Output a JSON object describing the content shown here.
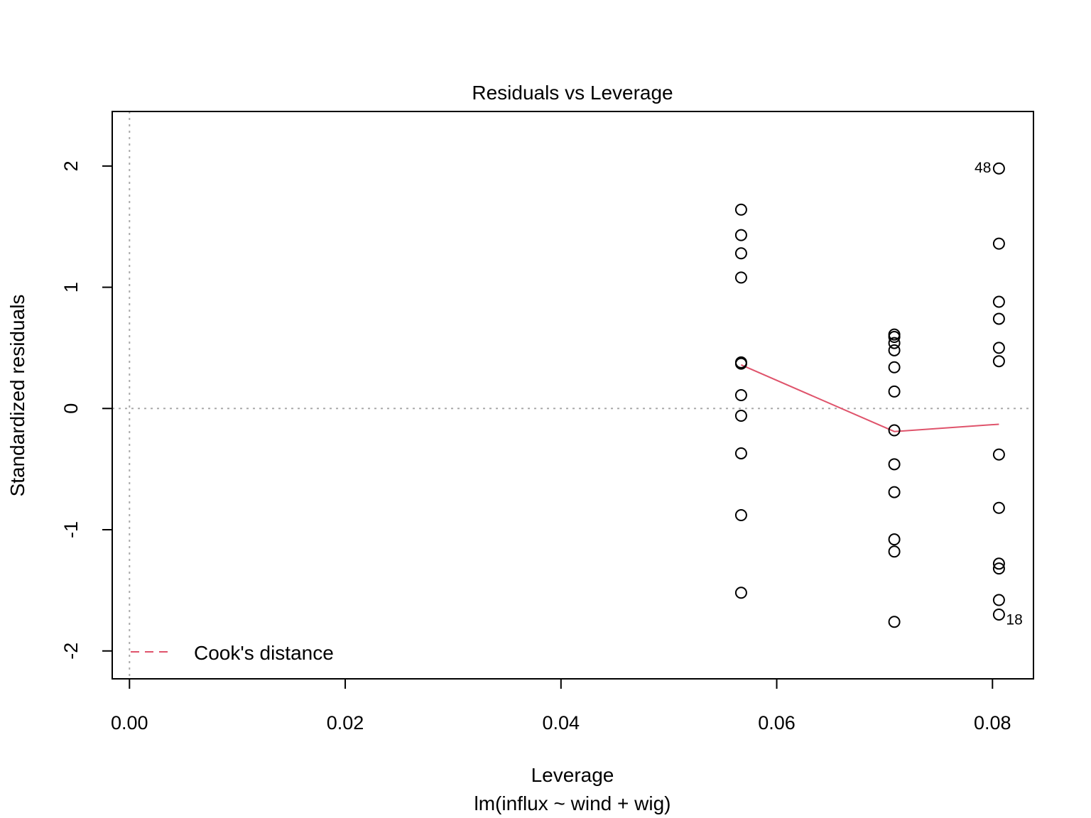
{
  "chart_data": {
    "type": "scatter",
    "title": "Residuals vs Leverage",
    "xlabel": "Leverage",
    "subtitle": "lm(influx ~ wind + wig)",
    "ylabel": "Standardized residuals",
    "xlim": [
      -0.0016,
      0.0838
    ],
    "ylim": [
      -2.23,
      2.45
    ],
    "x_ticks": [
      0.0,
      0.02,
      0.04,
      0.06,
      0.08
    ],
    "x_tick_labels": [
      "0.00",
      "0.02",
      "0.04",
      "0.06",
      "0.08"
    ],
    "y_ticks": [
      -2,
      -1,
      0,
      1,
      2
    ],
    "y_tick_labels": [
      "-2",
      "-1",
      "0",
      "1",
      "2"
    ],
    "reference_lines": {
      "x": 0,
      "y": 0,
      "style": "dotted",
      "color": "#aaaaaa"
    },
    "points": [
      {
        "x": 0.0567,
        "y": 1.64
      },
      {
        "x": 0.0567,
        "y": 1.43
      },
      {
        "x": 0.0567,
        "y": 1.28
      },
      {
        "x": 0.0567,
        "y": 1.08
      },
      {
        "x": 0.0567,
        "y": 0.38
      },
      {
        "x": 0.0567,
        "y": 0.37
      },
      {
        "x": 0.0567,
        "y": 0.11
      },
      {
        "x": 0.0567,
        "y": -0.06
      },
      {
        "x": 0.0567,
        "y": -0.37
      },
      {
        "x": 0.0567,
        "y": -0.88
      },
      {
        "x": 0.0567,
        "y": -1.52
      },
      {
        "x": 0.0709,
        "y": 0.61
      },
      {
        "x": 0.0709,
        "y": 0.59
      },
      {
        "x": 0.0709,
        "y": 0.54
      },
      {
        "x": 0.0709,
        "y": 0.48
      },
      {
        "x": 0.0709,
        "y": 0.34
      },
      {
        "x": 0.0709,
        "y": 0.14
      },
      {
        "x": 0.0709,
        "y": -0.18
      },
      {
        "x": 0.0709,
        "y": -0.46
      },
      {
        "x": 0.0709,
        "y": -0.69
      },
      {
        "x": 0.0709,
        "y": -1.08
      },
      {
        "x": 0.0709,
        "y": -1.18
      },
      {
        "x": 0.0709,
        "y": -1.76
      },
      {
        "x": 0.0806,
        "y": 1.98
      },
      {
        "x": 0.0806,
        "y": 1.36
      },
      {
        "x": 0.0806,
        "y": 0.88
      },
      {
        "x": 0.0806,
        "y": 0.74
      },
      {
        "x": 0.0806,
        "y": 0.5
      },
      {
        "x": 0.0806,
        "y": 0.39
      },
      {
        "x": 0.0806,
        "y": -0.38
      },
      {
        "x": 0.0806,
        "y": -0.82
      },
      {
        "x": 0.0806,
        "y": -1.28
      },
      {
        "x": 0.0806,
        "y": -1.32
      },
      {
        "x": 0.0806,
        "y": -1.58
      },
      {
        "x": 0.0806,
        "y": -1.7
      }
    ],
    "smooth_line": {
      "color": "#df536b",
      "points": [
        {
          "x": 0.0567,
          "y": 0.36
        },
        {
          "x": 0.0709,
          "y": -0.19
        },
        {
          "x": 0.0806,
          "y": -0.13
        }
      ]
    },
    "point_labels": [
      {
        "text": "48",
        "x": 0.0806,
        "y": 1.98,
        "side": "left"
      },
      {
        "text": "18",
        "x": 0.0806,
        "y": -1.7,
        "side": "right"
      }
    ],
    "legend": {
      "position": "bottom-left",
      "entries": [
        {
          "label": "Cook's distance",
          "color": "#df536b",
          "style": "dashed"
        }
      ]
    }
  }
}
